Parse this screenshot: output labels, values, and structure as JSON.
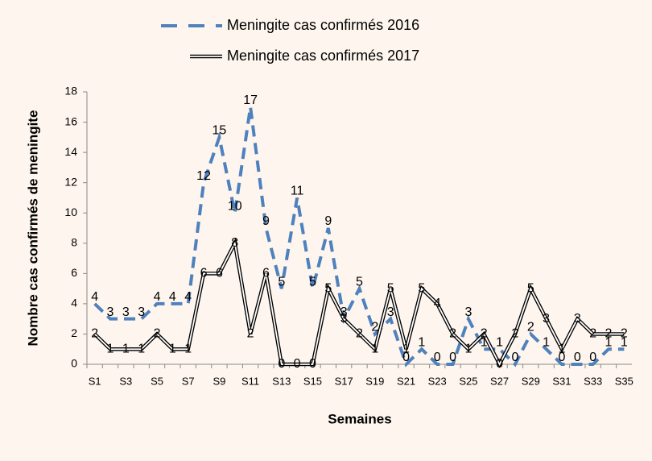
{
  "chart_data": {
    "type": "line",
    "x_label": "Semaines",
    "y_label": "Nombre cas confirmés de meningite",
    "categories": [
      "S1",
      null,
      "S3",
      null,
      "S5",
      null,
      "S7",
      null,
      "S9",
      null,
      "S11",
      null,
      "S13",
      null,
      "S15",
      null,
      "S17",
      null,
      "S19",
      null,
      "S21",
      null,
      "S23",
      null,
      "S25",
      null,
      "S27",
      null,
      "S29",
      null,
      "S31",
      null,
      "S33",
      null,
      "S35"
    ],
    "series": [
      {
        "name": "Meningite cas confirmés 2016",
        "color": "#4f81bd",
        "style": "dashed",
        "values": [
          4,
          3,
          3,
          3,
          4,
          4,
          4,
          12,
          15,
          10,
          17,
          9,
          5,
          11,
          5,
          9,
          3,
          5,
          2,
          3,
          0,
          1,
          0,
          0,
          3,
          1,
          1,
          0,
          2,
          1,
          0,
          0,
          0,
          1,
          1
        ]
      },
      {
        "name": "Meningite cas confirmés 2017",
        "color": "#000000",
        "style": "double",
        "values": [
          2,
          1,
          1,
          1,
          2,
          1,
          1,
          6,
          6,
          8,
          2,
          6,
          0,
          0,
          0,
          5,
          3,
          2,
          1,
          5,
          1,
          5,
          4,
          2,
          1,
          2,
          0,
          2,
          5,
          3,
          1,
          3,
          2,
          2,
          2
        ]
      }
    ],
    "ylim": [
      0,
      18
    ],
    "yticks": [
      0,
      2,
      4,
      6,
      8,
      10,
      12,
      14,
      16,
      18
    ],
    "legend": "top",
    "data_labels": true
  }
}
